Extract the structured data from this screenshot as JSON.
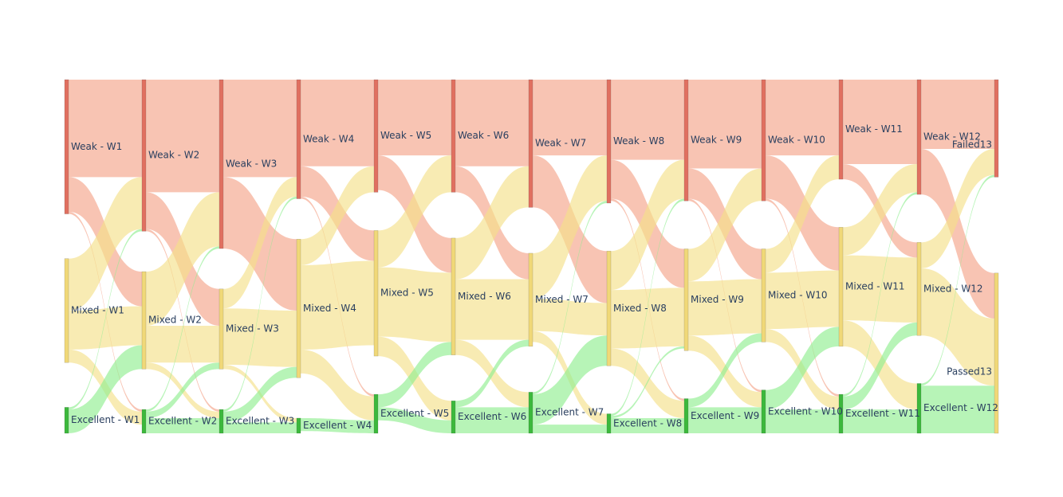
{
  "chart_data": {
    "type": "sankey",
    "colors": {
      "weak_node": "#e07060",
      "mixed_node": "#f0d878",
      "excellent_node": "#3cb83c",
      "failed_node": "#e07060",
      "passed_node": "#f0d878",
      "weak_link": "#f4a58a",
      "mixed_link": "#f5e08a",
      "excellent_link": "#90ee90"
    },
    "nodes": [
      {
        "id": "W1-Weak",
        "label": "Weak - W1",
        "category": "weak"
      },
      {
        "id": "W1-Mixed",
        "label": "Mixed - W1",
        "category": "mixed"
      },
      {
        "id": "W1-Excellent",
        "label": "Excellent - W1",
        "category": "excellent"
      },
      {
        "id": "W2-Weak",
        "label": "Weak - W2",
        "category": "weak"
      },
      {
        "id": "W2-Mixed",
        "label": "Mixed - W2",
        "category": "mixed"
      },
      {
        "id": "W2-Excellent",
        "label": "Excellent - W2",
        "category": "excellent"
      },
      {
        "id": "W3-Weak",
        "label": "Weak - W3",
        "category": "weak"
      },
      {
        "id": "W3-Mixed",
        "label": "Mixed - W3",
        "category": "mixed"
      },
      {
        "id": "W3-Excellent",
        "label": "Excellent - W3",
        "category": "excellent"
      },
      {
        "id": "W4-Weak",
        "label": "Weak - W4",
        "category": "weak"
      },
      {
        "id": "W4-Mixed",
        "label": "Mixed - W4",
        "category": "mixed"
      },
      {
        "id": "W4-Excellent",
        "label": "Excellent - W4",
        "category": "excellent"
      },
      {
        "id": "W5-Weak",
        "label": "Weak - W5",
        "category": "weak"
      },
      {
        "id": "W5-Mixed",
        "label": "Mixed - W5",
        "category": "mixed"
      },
      {
        "id": "W5-Excellent",
        "label": "Excellent - W5",
        "category": "excellent"
      },
      {
        "id": "W6-Weak",
        "label": "Weak - W6",
        "category": "weak"
      },
      {
        "id": "W6-Mixed",
        "label": "Mixed - W6",
        "category": "mixed"
      },
      {
        "id": "W6-Excellent",
        "label": "Excellent - W6",
        "category": "excellent"
      },
      {
        "id": "W7-Weak",
        "label": "Weak - W7",
        "category": "weak"
      },
      {
        "id": "W7-Mixed",
        "label": "Mixed - W7",
        "category": "mixed"
      },
      {
        "id": "W7-Excellent",
        "label": "Excellent - W7",
        "category": "excellent"
      },
      {
        "id": "W8-Weak",
        "label": "Weak - W8",
        "category": "weak"
      },
      {
        "id": "W8-Mixed",
        "label": "Mixed - W8",
        "category": "mixed"
      },
      {
        "id": "W8-Excellent",
        "label": "Excellent - W8",
        "category": "excellent"
      },
      {
        "id": "W9-Weak",
        "label": "Weak - W9",
        "category": "weak"
      },
      {
        "id": "W9-Mixed",
        "label": "Mixed - W9",
        "category": "mixed"
      },
      {
        "id": "W9-Excellent",
        "label": "Excellent - W9",
        "category": "excellent"
      },
      {
        "id": "W10-Weak",
        "label": "Weak - W10",
        "category": "weak"
      },
      {
        "id": "W10-Mixed",
        "label": "Mixed - W10",
        "category": "mixed"
      },
      {
        "id": "W10-Excellent",
        "label": "Excellent - W10",
        "category": "excellent"
      },
      {
        "id": "W11-Weak",
        "label": "Weak - W11",
        "category": "weak"
      },
      {
        "id": "W11-Mixed",
        "label": "Mixed - W11",
        "category": "mixed"
      },
      {
        "id": "W11-Excellent",
        "label": "Excellent - W11",
        "category": "excellent"
      },
      {
        "id": "W12-Weak",
        "label": "Weak - W12",
        "category": "weak"
      },
      {
        "id": "W12-Mixed",
        "label": "Mixed - W12",
        "category": "mixed"
      },
      {
        "id": "W12-Excellent",
        "label": "Excellent - W12",
        "category": "excellent"
      },
      {
        "id": "Failed13",
        "label": "Failed13",
        "category": "failed"
      },
      {
        "id": "Passed13",
        "label": "Passed13",
        "category": "passed"
      }
    ],
    "links": [
      {
        "source": "W1-Weak",
        "target": "W2-Weak",
        "value": 45
      },
      {
        "source": "W1-Weak",
        "target": "W2-Mixed",
        "value": 16
      },
      {
        "source": "W1-Weak",
        "target": "W2-Excellent",
        "value": 1
      },
      {
        "source": "W1-Mixed",
        "target": "W2-Weak",
        "value": 24
      },
      {
        "source": "W1-Mixed",
        "target": "W2-Mixed",
        "value": 18
      },
      {
        "source": "W1-Mixed",
        "target": "W2-Excellent",
        "value": 6
      },
      {
        "source": "W1-Excellent",
        "target": "W2-Weak",
        "value": 1
      },
      {
        "source": "W1-Excellent",
        "target": "W2-Mixed",
        "value": 11
      },
      {
        "source": "W2-Weak",
        "target": "W3-Weak",
        "value": 52
      },
      {
        "source": "W2-Weak",
        "target": "W3-Mixed",
        "value": 17
      },
      {
        "source": "W2-Weak",
        "target": "W3-Excellent",
        "value": 1
      },
      {
        "source": "W2-Mixed",
        "target": "W3-Weak",
        "value": 25
      },
      {
        "source": "W2-Mixed",
        "target": "W3-Mixed",
        "value": 17
      },
      {
        "source": "W2-Mixed",
        "target": "W3-Excellent",
        "value": 3
      },
      {
        "source": "W2-Excellent",
        "target": "W3-Weak",
        "value": 1
      },
      {
        "source": "W2-Excellent",
        "target": "W3-Mixed",
        "value": 3
      },
      {
        "source": "W2-Excellent",
        "target": "W3-Excellent",
        "value": 7
      },
      {
        "source": "W3-Weak",
        "target": "W4-Weak",
        "value": 45
      },
      {
        "source": "W3-Weak",
        "target": "W4-Mixed",
        "value": 33
      },
      {
        "source": "W3-Mixed",
        "target": "W4-Weak",
        "value": 9
      },
      {
        "source": "W3-Mixed",
        "target": "W4-Mixed",
        "value": 26
      },
      {
        "source": "W3-Mixed",
        "target": "W4-Excellent",
        "value": 2
      },
      {
        "source": "W3-Excellent",
        "target": "W4-Weak",
        "value": 1
      },
      {
        "source": "W3-Excellent",
        "target": "W4-Mixed",
        "value": 5
      },
      {
        "source": "W3-Excellent",
        "target": "W4-Excellent",
        "value": 5
      },
      {
        "source": "W4-Weak",
        "target": "W5-Weak",
        "value": 40
      },
      {
        "source": "W4-Weak",
        "target": "W5-Mixed",
        "value": 14
      },
      {
        "source": "W4-Weak",
        "target": "W5-Excellent",
        "value": 1
      },
      {
        "source": "W4-Mixed",
        "target": "W5-Weak",
        "value": 12
      },
      {
        "source": "W4-Mixed",
        "target": "W5-Mixed",
        "value": 39
      },
      {
        "source": "W4-Mixed",
        "target": "W5-Excellent",
        "value": 11
      },
      {
        "source": "W4-Excellent",
        "target": "W5-Excellent",
        "value": 6
      },
      {
        "source": "W5-Weak",
        "target": "W6-Weak",
        "value": 35
      },
      {
        "source": "W5-Weak",
        "target": "W6-Mixed",
        "value": 16
      },
      {
        "source": "W5-Mixed",
        "target": "W6-Weak",
        "value": 17
      },
      {
        "source": "W5-Mixed",
        "target": "W6-Mixed",
        "value": 32
      },
      {
        "source": "W5-Mixed",
        "target": "W6-Excellent",
        "value": 9
      },
      {
        "source": "W5-Excellent",
        "target": "W6-Mixed",
        "value": 6
      },
      {
        "source": "W5-Excellent",
        "target": "W6-Excellent",
        "value": 6
      },
      {
        "source": "W6-Weak",
        "target": "W7-Weak",
        "value": 40
      },
      {
        "source": "W6-Weak",
        "target": "W7-Mixed",
        "value": 12
      },
      {
        "source": "W6-Mixed",
        "target": "W7-Weak",
        "value": 19
      },
      {
        "source": "W6-Mixed",
        "target": "W7-Mixed",
        "value": 28
      },
      {
        "source": "W6-Mixed",
        "target": "W7-Excellent",
        "value": 7
      },
      {
        "source": "W6-Excellent",
        "target": "W7-Mixed",
        "value": 3
      },
      {
        "source": "W6-Excellent",
        "target": "W7-Excellent",
        "value": 12
      },
      {
        "source": "W7-Weak",
        "target": "W8-Weak",
        "value": 35
      },
      {
        "source": "W7-Weak",
        "target": "W8-Mixed",
        "value": 24
      },
      {
        "source": "W7-Mixed",
        "target": "W8-Weak",
        "value": 21
      },
      {
        "source": "W7-Mixed",
        "target": "W8-Mixed",
        "value": 15
      },
      {
        "source": "W7-Mixed",
        "target": "W8-Excellent",
        "value": 5
      },
      {
        "source": "W7-Excellent",
        "target": "W8-Weak",
        "value": 1
      },
      {
        "source": "W7-Excellent",
        "target": "W8-Mixed",
        "value": 14
      },
      {
        "source": "W7-Excellent",
        "target": "W8-Excellent",
        "value": 4
      },
      {
        "source": "W8-Weak",
        "target": "W9-Weak",
        "value": 37
      },
      {
        "source": "W8-Weak",
        "target": "W9-Mixed",
        "value": 18
      },
      {
        "source": "W8-Weak",
        "target": "W9-Excellent",
        "value": 1
      },
      {
        "source": "W8-Mixed",
        "target": "W9-Weak",
        "value": 18
      },
      {
        "source": "W8-Mixed",
        "target": "W9-Mixed",
        "value": 27
      },
      {
        "source": "W8-Mixed",
        "target": "W9-Excellent",
        "value": 8
      },
      {
        "source": "W8-Excellent",
        "target": "W9-Weak",
        "value": 1
      },
      {
        "source": "W8-Excellent",
        "target": "W9-Mixed",
        "value": 1
      },
      {
        "source": "W8-Excellent",
        "target": "W9-Excellent",
        "value": 7
      },
      {
        "source": "W9-Weak",
        "target": "W10-Weak",
        "value": 41
      },
      {
        "source": "W9-Weak",
        "target": "W10-Mixed",
        "value": 14
      },
      {
        "source": "W9-Weak",
        "target": "W10-Excellent",
        "value": 1
      },
      {
        "source": "W9-Mixed",
        "target": "W10-Weak",
        "value": 15
      },
      {
        "source": "W9-Mixed",
        "target": "W10-Mixed",
        "value": 25
      },
      {
        "source": "W9-Mixed",
        "target": "W10-Excellent",
        "value": 7
      },
      {
        "source": "W9-Excellent",
        "target": "W10-Mixed",
        "value": 4
      },
      {
        "source": "W9-Excellent",
        "target": "W10-Excellent",
        "value": 12
      },
      {
        "source": "W10-Weak",
        "target": "W11-Weak",
        "value": 35
      },
      {
        "source": "W10-Weak",
        "target": "W11-Mixed",
        "value": 20
      },
      {
        "source": "W10-Weak",
        "target": "W11-Excellent",
        "value": 1
      },
      {
        "source": "W10-Mixed",
        "target": "W11-Weak",
        "value": 11
      },
      {
        "source": "W10-Mixed",
        "target": "W11-Mixed",
        "value": 26
      },
      {
        "source": "W10-Mixed",
        "target": "W11-Excellent",
        "value": 6
      },
      {
        "source": "W10-Excellent",
        "target": "W11-Mixed",
        "value": 9
      },
      {
        "source": "W10-Excellent",
        "target": "W11-Excellent",
        "value": 11
      },
      {
        "source": "W11-Weak",
        "target": "W12-Weak",
        "value": 39
      },
      {
        "source": "W11-Weak",
        "target": "W12-Mixed",
        "value": 7
      },
      {
        "source": "W11-Mixed",
        "target": "W12-Weak",
        "value": 13
      },
      {
        "source": "W11-Mixed",
        "target": "W12-Mixed",
        "value": 30
      },
      {
        "source": "W11-Mixed",
        "target": "W12-Excellent",
        "value": 12
      },
      {
        "source": "W11-Excellent",
        "target": "W12-Weak",
        "value": 1
      },
      {
        "source": "W11-Excellent",
        "target": "W12-Mixed",
        "value": 6
      },
      {
        "source": "W11-Excellent",
        "target": "W12-Excellent",
        "value": 11
      },
      {
        "source": "W12-Weak",
        "target": "Failed13",
        "value": 32
      },
      {
        "source": "W12-Weak",
        "target": "Passed13",
        "value": 21
      },
      {
        "source": "W12-Mixed",
        "target": "Failed13",
        "value": 12
      },
      {
        "source": "W12-Mixed",
        "target": "Passed13",
        "value": 31
      },
      {
        "source": "W12-Excellent",
        "target": "Failed13",
        "value": 1
      },
      {
        "source": "W12-Excellent",
        "target": "Passed13",
        "value": 22
      }
    ]
  }
}
